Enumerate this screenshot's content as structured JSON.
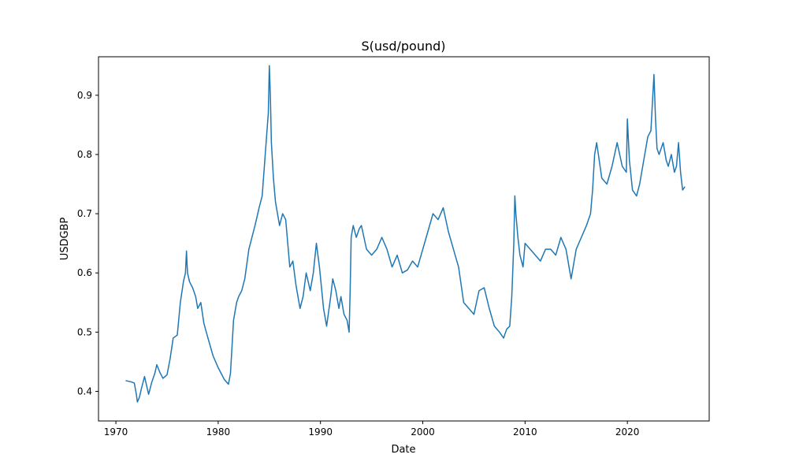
{
  "chart_data": {
    "type": "line",
    "title": "S(usd/pound)",
    "xlabel": "Date",
    "ylabel": "USDGBP",
    "xlim": [
      1968.3,
      2028.0
    ],
    "ylim": [
      0.35,
      0.965
    ],
    "x_ticks": [
      1970,
      1980,
      1990,
      2000,
      2010,
      2020
    ],
    "x_tick_labels": [
      "1970",
      "1980",
      "1990",
      "2000",
      "2010",
      "2020"
    ],
    "y_ticks": [
      0.4,
      0.5,
      0.6,
      0.7,
      0.8,
      0.9
    ],
    "y_tick_labels": [
      "0.4",
      "0.5",
      "0.6",
      "0.7",
      "0.8",
      "0.9"
    ],
    "grid": false,
    "colors": {
      "series": "#1f77b4"
    },
    "series": [
      {
        "x": [
          1971.0,
          1971.5,
          1971.8,
          1972.0,
          1972.1,
          1972.3,
          1972.5,
          1972.8,
          1973.0,
          1973.2,
          1973.5,
          1973.8,
          1974.0,
          1974.3,
          1974.6,
          1975.0,
          1975.3,
          1975.6,
          1976.0,
          1976.3,
          1976.6,
          1976.8,
          1976.9,
          1977.0,
          1977.2,
          1977.5,
          1977.8,
          1978.0,
          1978.3,
          1978.6,
          1979.0,
          1979.5,
          1980.0,
          1980.3,
          1980.6,
          1981.0,
          1981.2,
          1981.5,
          1981.8,
          1982.0,
          1982.3,
          1982.6,
          1983.0,
          1983.3,
          1983.6,
          1984.0,
          1984.3,
          1984.6,
          1984.9,
          1985.0,
          1985.1,
          1985.2,
          1985.4,
          1985.6,
          1985.8,
          1986.0,
          1986.3,
          1986.6,
          1987.0,
          1987.3,
          1987.6,
          1988.0,
          1988.3,
          1988.6,
          1989.0,
          1989.3,
          1989.6,
          1989.9,
          1990.3,
          1990.6,
          1991.0,
          1991.2,
          1991.5,
          1991.8,
          1992.0,
          1992.3,
          1992.6,
          1992.8,
          1992.9,
          1993.0,
          1993.2,
          1993.5,
          1993.8,
          1994.0,
          1994.5,
          1995.0,
          1995.5,
          1996.0,
          1996.5,
          1997.0,
          1997.5,
          1998.0,
          1998.5,
          1999.0,
          1999.5,
          2000.0,
          2000.5,
          2001.0,
          2001.5,
          2002.0,
          2002.5,
          2003.0,
          2003.5,
          2004.0,
          2004.5,
          2005.0,
          2005.5,
          2006.0,
          2006.5,
          2007.0,
          2007.5,
          2007.9,
          2008.2,
          2008.5,
          2008.7,
          2008.9,
          2009.0,
          2009.1,
          2009.3,
          2009.5,
          2009.8,
          2010.0,
          2010.5,
          2011.0,
          2011.5,
          2012.0,
          2012.5,
          2013.0,
          2013.5,
          2014.0,
          2014.5,
          2015.0,
          2015.5,
          2016.0,
          2016.4,
          2016.6,
          2016.8,
          2017.0,
          2017.5,
          2018.0,
          2018.5,
          2019.0,
          2019.5,
          2019.9,
          2020.0,
          2020.2,
          2020.5,
          2020.9,
          2021.2,
          2021.6,
          2022.0,
          2022.3,
          2022.6,
          2022.75,
          2022.9,
          2023.1,
          2023.5,
          2023.8,
          2024.0,
          2024.3,
          2024.6,
          2024.8,
          2025.0,
          2025.2,
          2025.4,
          2025.6
        ],
        "y": [
          0.418,
          0.416,
          0.414,
          0.395,
          0.382,
          0.39,
          0.405,
          0.425,
          0.41,
          0.395,
          0.415,
          0.43,
          0.445,
          0.432,
          0.422,
          0.428,
          0.455,
          0.49,
          0.495,
          0.55,
          0.585,
          0.6,
          0.637,
          0.6,
          0.585,
          0.575,
          0.56,
          0.54,
          0.55,
          0.515,
          0.49,
          0.46,
          0.44,
          0.43,
          0.42,
          0.412,
          0.43,
          0.52,
          0.55,
          0.56,
          0.57,
          0.59,
          0.64,
          0.66,
          0.68,
          0.71,
          0.73,
          0.8,
          0.87,
          0.95,
          0.9,
          0.82,
          0.76,
          0.72,
          0.7,
          0.68,
          0.7,
          0.69,
          0.61,
          0.62,
          0.58,
          0.54,
          0.56,
          0.6,
          0.57,
          0.6,
          0.65,
          0.61,
          0.54,
          0.51,
          0.56,
          0.59,
          0.57,
          0.54,
          0.56,
          0.53,
          0.52,
          0.5,
          0.57,
          0.66,
          0.68,
          0.66,
          0.675,
          0.68,
          0.64,
          0.63,
          0.64,
          0.66,
          0.64,
          0.61,
          0.63,
          0.6,
          0.605,
          0.62,
          0.61,
          0.64,
          0.67,
          0.7,
          0.69,
          0.71,
          0.67,
          0.64,
          0.61,
          0.55,
          0.54,
          0.53,
          0.57,
          0.575,
          0.54,
          0.51,
          0.5,
          0.49,
          0.505,
          0.51,
          0.56,
          0.65,
          0.73,
          0.7,
          0.66,
          0.63,
          0.61,
          0.65,
          0.64,
          0.63,
          0.62,
          0.64,
          0.64,
          0.63,
          0.66,
          0.64,
          0.59,
          0.64,
          0.66,
          0.68,
          0.7,
          0.74,
          0.8,
          0.82,
          0.76,
          0.75,
          0.78,
          0.82,
          0.78,
          0.77,
          0.86,
          0.79,
          0.74,
          0.73,
          0.75,
          0.79,
          0.83,
          0.84,
          0.935,
          0.86,
          0.81,
          0.8,
          0.82,
          0.79,
          0.78,
          0.8,
          0.77,
          0.78,
          0.82,
          0.77,
          0.74,
          0.745
        ]
      }
    ]
  }
}
